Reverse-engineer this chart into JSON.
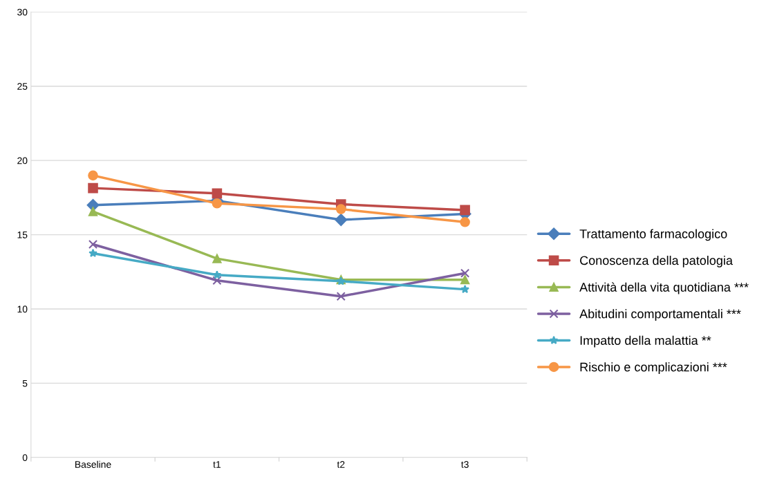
{
  "chart_data": {
    "type": "line",
    "categories": [
      "Baseline",
      "t1",
      "t2",
      "t3"
    ],
    "series": [
      {
        "name": "Trattamento farmacologico",
        "color": "#4a7ebb",
        "marker": "diamond",
        "values": [
          16.99,
          17.29,
          16.0,
          16.4
        ]
      },
      {
        "name": "Conoscenza della patologia",
        "color": "#be4b48",
        "marker": "square",
        "values": [
          18.14,
          17.78,
          17.05,
          16.66
        ]
      },
      {
        "name": "Attività della vita quotidiana ***",
        "color": "#98b954",
        "marker": "triangle",
        "values": [
          16.56,
          13.39,
          11.97,
          11.97
        ]
      },
      {
        "name": "Abitudini comportamentali ***",
        "color": "#7d60a0",
        "marker": "cross",
        "values": [
          14.35,
          11.92,
          10.85,
          12.41
        ]
      },
      {
        "name": "Impatto della malattia **",
        "color": "#46aac5",
        "marker": "star",
        "values": [
          13.75,
          12.29,
          11.87,
          11.32
        ]
      },
      {
        "name": "Rischio e complicazioni ***",
        "color": "#f79646",
        "marker": "circle",
        "values": [
          18.99,
          17.11,
          16.72,
          15.85
        ]
      }
    ],
    "ylim": [
      0,
      30
    ],
    "yticks": [
      0,
      5,
      10,
      15,
      20,
      25,
      30
    ],
    "grid": "y",
    "legend": "right",
    "line_style": "solid"
  }
}
